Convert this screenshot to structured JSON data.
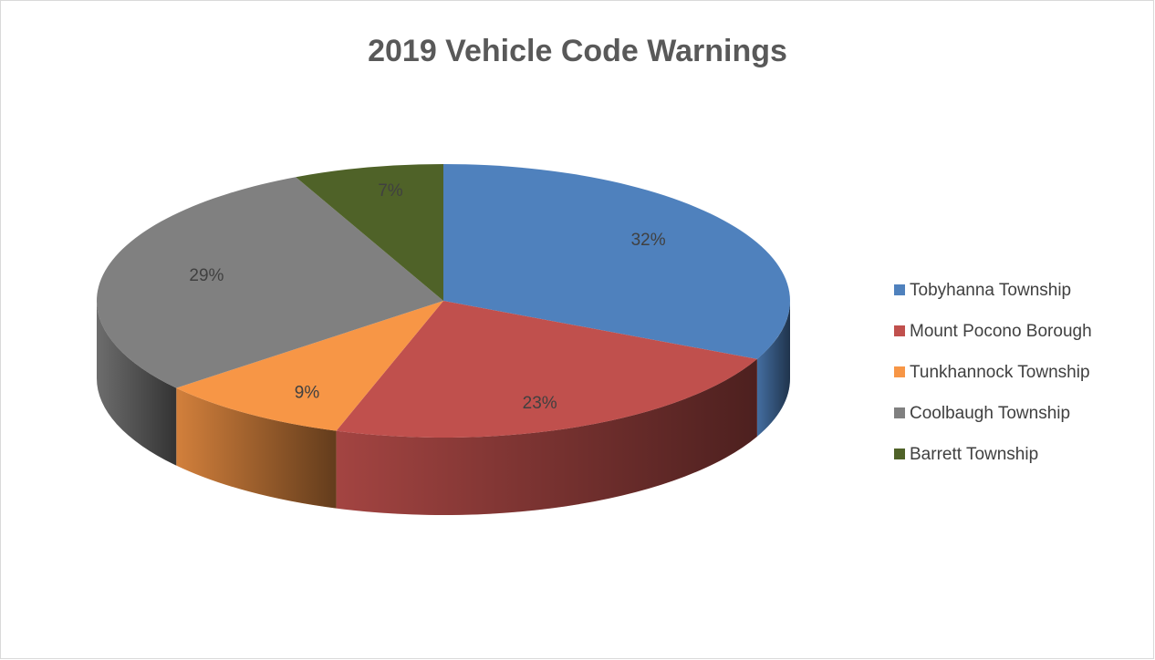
{
  "chart_data": {
    "type": "pie",
    "title": "2019 Vehicle Code Warnings",
    "categories": [
      "Tobyhanna Township",
      "Mount Pocono Borough",
      "Tunkhannock Township",
      "Coolbaugh Township",
      "Barrett Township"
    ],
    "values": [
      32,
      23,
      9,
      29,
      7
    ],
    "value_labels": [
      "32%",
      "23%",
      "9%",
      "29%",
      "7%"
    ],
    "colors": [
      "#4f81bd",
      "#c0504d",
      "#f79646",
      "#808080",
      "#4f6228"
    ],
    "legend": "right"
  }
}
